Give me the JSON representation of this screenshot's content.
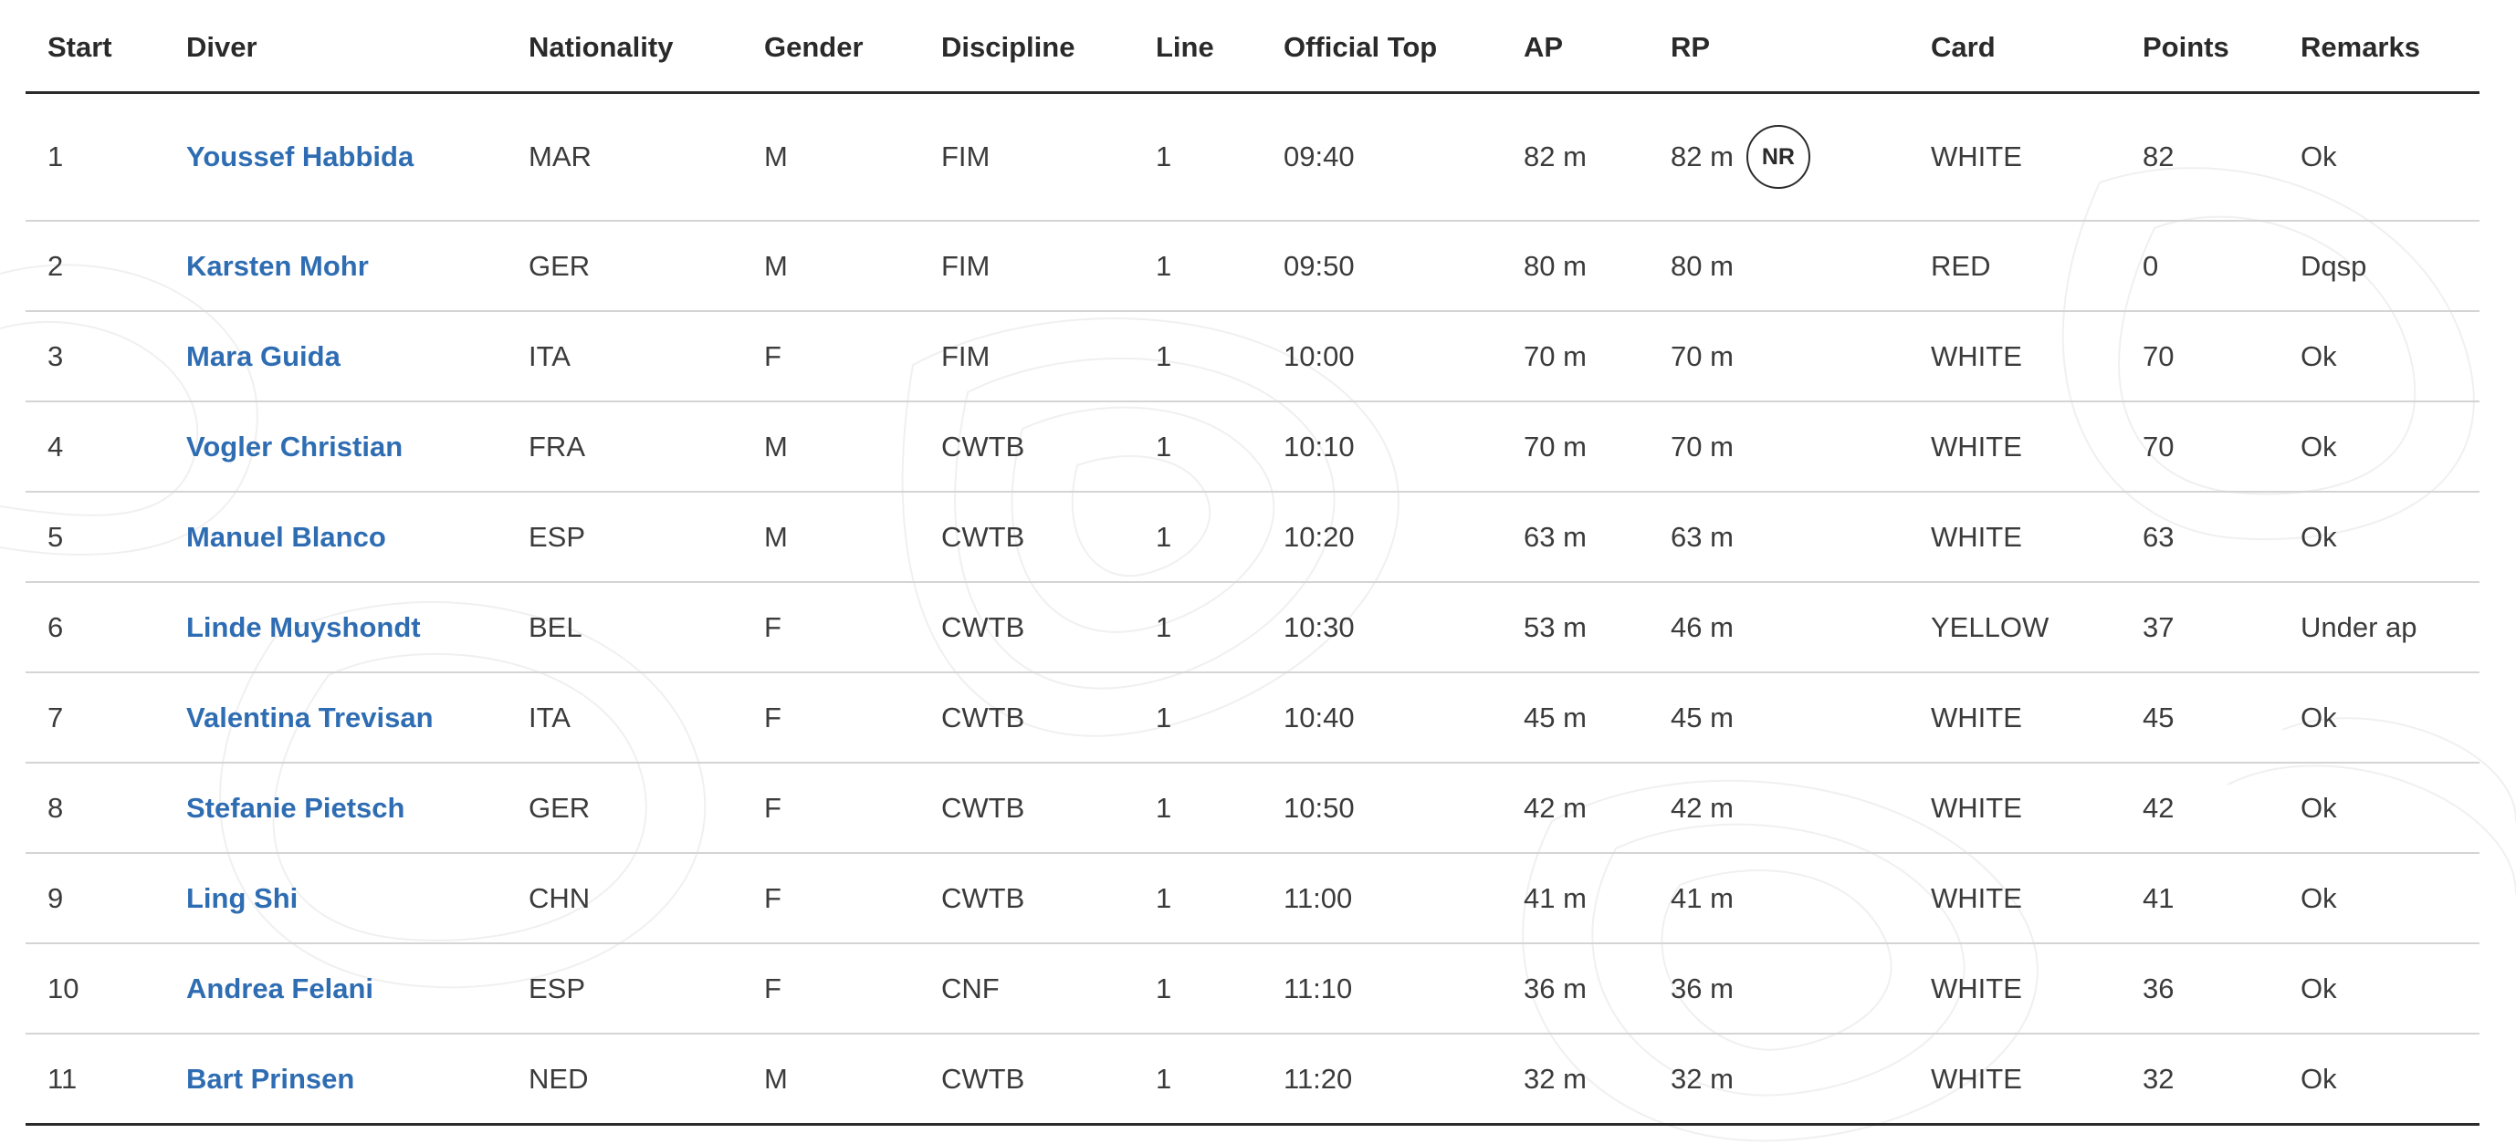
{
  "columns": [
    "Start",
    "Diver",
    "Nationality",
    "Gender",
    "Discipline",
    "Line",
    "Official Top",
    "AP",
    "RP",
    "Card",
    "Points",
    "Remarks"
  ],
  "rows": [
    {
      "start": "1",
      "diver": "Youssef Habbida",
      "nationality": "MAR",
      "gender": "M",
      "discipline": "FIM",
      "line": "1",
      "official_top": "09:40",
      "ap": "82 m",
      "rp": "82 m",
      "badge": "NR",
      "card": "WHITE",
      "points": "82",
      "remarks": "Ok"
    },
    {
      "start": "2",
      "diver": "Karsten Mohr",
      "nationality": "GER",
      "gender": "M",
      "discipline": "FIM",
      "line": "1",
      "official_top": "09:50",
      "ap": "80 m",
      "rp": "80 m",
      "badge": "",
      "card": "RED",
      "points": "0",
      "remarks": "Dqsp"
    },
    {
      "start": "3",
      "diver": "Mara Guida",
      "nationality": "ITA",
      "gender": "F",
      "discipline": "FIM",
      "line": "1",
      "official_top": "10:00",
      "ap": "70 m",
      "rp": "70 m",
      "badge": "",
      "card": "WHITE",
      "points": "70",
      "remarks": "Ok"
    },
    {
      "start": "4",
      "diver": "Vogler Christian",
      "nationality": "FRA",
      "gender": "M",
      "discipline": "CWTB",
      "line": "1",
      "official_top": "10:10",
      "ap": "70 m",
      "rp": "70 m",
      "badge": "",
      "card": "WHITE",
      "points": "70",
      "remarks": "Ok"
    },
    {
      "start": "5",
      "diver": "Manuel Blanco",
      "nationality": "ESP",
      "gender": "M",
      "discipline": "CWTB",
      "line": "1",
      "official_top": "10:20",
      "ap": "63 m",
      "rp": "63 m",
      "badge": "",
      "card": "WHITE",
      "points": "63",
      "remarks": "Ok"
    },
    {
      "start": "6",
      "diver": "Linde Muyshondt",
      "nationality": "BEL",
      "gender": "F",
      "discipline": "CWTB",
      "line": "1",
      "official_top": "10:30",
      "ap": "53 m",
      "rp": "46 m",
      "badge": "",
      "card": "YELLOW",
      "points": "37",
      "remarks": "Under ap"
    },
    {
      "start": "7",
      "diver": "Valentina Trevisan",
      "nationality": "ITA",
      "gender": "F",
      "discipline": "CWTB",
      "line": "1",
      "official_top": "10:40",
      "ap": "45 m",
      "rp": "45 m",
      "badge": "",
      "card": "WHITE",
      "points": "45",
      "remarks": "Ok"
    },
    {
      "start": "8",
      "diver": "Stefanie Pietsch",
      "nationality": "GER",
      "gender": "F",
      "discipline": "CWTB",
      "line": "1",
      "official_top": "10:50",
      "ap": "42 m",
      "rp": "42 m",
      "badge": "",
      "card": "WHITE",
      "points": "42",
      "remarks": "Ok"
    },
    {
      "start": "9",
      "diver": "Ling Shi",
      "nationality": "CHN",
      "gender": "F",
      "discipline": "CWTB",
      "line": "1",
      "official_top": "11:00",
      "ap": "41 m",
      "rp": "41 m",
      "badge": "",
      "card": "WHITE",
      "points": "41",
      "remarks": "Ok"
    },
    {
      "start": "10",
      "diver": "Andrea Felani",
      "nationality": "ESP",
      "gender": "F",
      "discipline": "CNF",
      "line": "1",
      "official_top": "11:10",
      "ap": "36 m",
      "rp": "36 m",
      "badge": "",
      "card": "WHITE",
      "points": "36",
      "remarks": "Ok"
    },
    {
      "start": "11",
      "diver": "Bart Prinsen",
      "nationality": "NED",
      "gender": "M",
      "discipline": "CWTB",
      "line": "1",
      "official_top": "11:20",
      "ap": "32 m",
      "rp": "32 m",
      "badge": "",
      "card": "WHITE",
      "points": "32",
      "remarks": "Ok"
    }
  ],
  "theme": {
    "link_color": "#2f6db3",
    "text_color": "#3b3b3b",
    "rule_color": "#d4d4d4",
    "header_rule_color": "#2b2b2b"
  },
  "icons": {
    "background": "topographic-contour-pattern",
    "record": "national-record-badge"
  }
}
